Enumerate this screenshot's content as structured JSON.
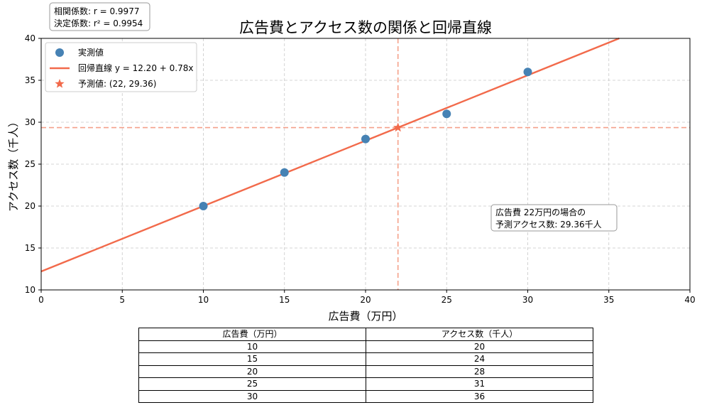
{
  "chart_data": {
    "type": "scatter",
    "title": "広告費とアクセス数の関係と回帰直線",
    "xlabel": "広告費（万円）",
    "ylabel": "アクセス数（千人）",
    "xlim": [
      0,
      40
    ],
    "ylim": [
      10,
      40
    ],
    "xticks": [
      0,
      5,
      10,
      15,
      20,
      25,
      30,
      35,
      40
    ],
    "yticks": [
      10,
      15,
      20,
      25,
      30,
      35,
      40
    ],
    "grid": true,
    "legend_position": "top-left",
    "series": [
      {
        "name": "実測値",
        "kind": "scatter",
        "color": "#4682b4",
        "x": [
          10,
          15,
          20,
          25,
          30
        ],
        "y": [
          20,
          24,
          28,
          31,
          36
        ]
      },
      {
        "name": "回帰直線 y = 12.20 + 0.78x",
        "kind": "line",
        "color": "#f26a4b",
        "intercept": 12.2,
        "slope": 0.78
      },
      {
        "name": "予測値: (22, 29.36)",
        "kind": "star",
        "color": "#f26a4b",
        "x": [
          22
        ],
        "y": [
          29.36
        ]
      }
    ],
    "reference_lines": {
      "x": 22,
      "y": 29.36,
      "color": "#f4a08a"
    },
    "stats_box": [
      "相関係数: r = 0.9977",
      "決定係数: r² = 0.9954"
    ],
    "prediction_note": [
      "広告費 22万円の場合の",
      "予測アクセス数: 29.36千人"
    ]
  },
  "table": {
    "headers": [
      "広告費（万円）",
      "アクセス数（千人）"
    ],
    "rows": [
      [
        "10",
        "20"
      ],
      [
        "15",
        "24"
      ],
      [
        "20",
        "28"
      ],
      [
        "25",
        "31"
      ],
      [
        "30",
        "36"
      ]
    ]
  }
}
